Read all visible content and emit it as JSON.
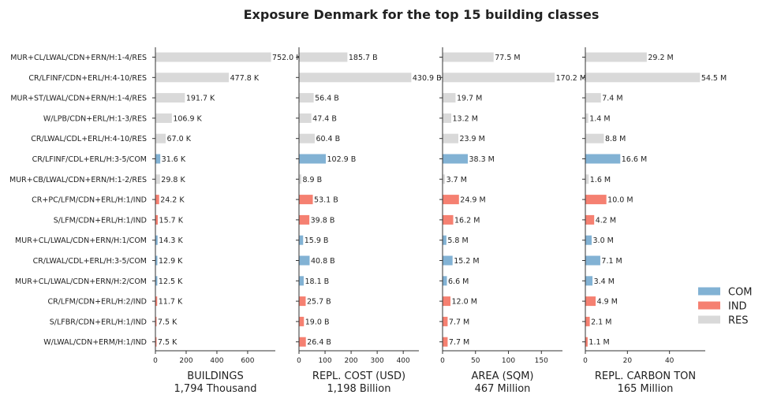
{
  "chart_data": {
    "type": "bar",
    "orientation": "horizontal",
    "title": "Exposure Denmark for the top 15 building classes",
    "categories": [
      "MUR+CL/LWAL/CDN+ERN/H:1-4/RES",
      "CR/LFINF/CDN+ERL/H:4-10/RES",
      "MUR+ST/LWAL/CDN+ERN/H:1-4/RES",
      "W/LPB/CDN+ERL/H:1-3/RES",
      "CR/LWAL/CDL+ERL/H:4-10/RES",
      "CR/LFINF/CDL+ERL/H:3-5/COM",
      "MUR+CB/LWAL/CDN+ERN/H:1-2/RES",
      "CR+PC/LFM/CDN+ERL/H:1/IND",
      "S/LFM/CDN+ERL/H:1/IND",
      "MUR+CL/LWAL/CDN+ERN/H:1/COM",
      "CR/LWAL/CDL+ERL/H:3-5/COM",
      "MUR+CL/LWAL/CDN+ERN/H:2/COM",
      "CR/LFM/CDN+ERL/H:2/IND",
      "S/LFBR/CDN+ERL/H:1/IND",
      "W/LWAL/CDN+ERM/H:1/IND"
    ],
    "occupancy": [
      "RES",
      "RES",
      "RES",
      "RES",
      "RES",
      "COM",
      "RES",
      "IND",
      "IND",
      "COM",
      "COM",
      "COM",
      "IND",
      "IND",
      "IND"
    ],
    "colors": {
      "COM": "#82b2d4",
      "IND": "#f58071",
      "RES": "#d9d9d9"
    },
    "legend": {
      "placement": "lower-right",
      "entries": [
        {
          "key": "COM",
          "label": "COM"
        },
        {
          "key": "IND",
          "label": "IND"
        },
        {
          "key": "RES",
          "label": "RES"
        }
      ]
    },
    "panels": [
      {
        "xlabel": "BUILDINGS",
        "total": "1,794 Thousand",
        "xlim": [
          0,
          780
        ],
        "xticks": [
          0,
          200,
          400,
          600
        ],
        "values": [
          752.0,
          477.8,
          191.7,
          106.9,
          67.0,
          31.6,
          29.8,
          24.2,
          15.7,
          14.3,
          12.9,
          12.5,
          11.7,
          7.5,
          7.5
        ],
        "labels": [
          "752.0 K",
          "477.8 K",
          "191.7 K",
          "106.9 K",
          "67.0 K",
          "31.6 K",
          "29.8 K",
          "24.2 K",
          "15.7 K",
          "14.3 K",
          "12.9 K",
          "12.5 K",
          "11.7 K",
          "7.5 K",
          "7.5 K"
        ]
      },
      {
        "xlabel": "REPL. COST (USD)",
        "total": "1,198 Billion",
        "xlim": [
          0,
          460
        ],
        "xticks": [
          0,
          100,
          200,
          300,
          400
        ],
        "values": [
          185.7,
          430.9,
          56.4,
          47.4,
          60.4,
          102.9,
          8.9,
          53.1,
          39.8,
          15.9,
          40.8,
          18.1,
          25.7,
          19.0,
          26.4
        ],
        "labels": [
          "185.7 B",
          "430.9 B",
          "56.4 B",
          "47.4 B",
          "60.4 B",
          "102.9 B",
          "8.9 B",
          "53.1 B",
          "39.8 B",
          "15.9 B",
          "40.8 B",
          "18.1 B",
          "25.7 B",
          "19.0 B",
          "26.4 B"
        ]
      },
      {
        "xlabel": "AREA (SQM)",
        "total": "467 Million",
        "xlim": [
          0,
          182
        ],
        "xticks": [
          0,
          50,
          100,
          150
        ],
        "values": [
          77.5,
          170.2,
          19.7,
          13.2,
          23.9,
          38.3,
          3.7,
          24.9,
          16.2,
          5.8,
          15.2,
          6.6,
          12.0,
          7.7,
          7.7
        ],
        "labels": [
          "77.5 M",
          "170.2 M",
          "19.7 M",
          "13.2 M",
          "23.9 M",
          "38.3 M",
          "3.7 M",
          "24.9 M",
          "16.2 M",
          "5.8 M",
          "15.2 M",
          "6.6 M",
          "12.0 M",
          "7.7 M",
          "7.7 M"
        ]
      },
      {
        "xlabel": "REPL. CARBON TON",
        "total": "165 Million",
        "xlim": [
          0,
          57
        ],
        "xticks": [
          0,
          20,
          40
        ],
        "values": [
          29.2,
          54.5,
          7.4,
          1.4,
          8.8,
          16.6,
          1.6,
          10.0,
          4.2,
          3.0,
          7.1,
          3.4,
          4.9,
          2.1,
          1.1
        ],
        "labels": [
          "29.2 M",
          "54.5 M",
          "7.4 M",
          "1.4 M",
          "8.8 M",
          "16.6 M",
          "1.6 M",
          "10.0 M",
          "4.2 M",
          "3.0 M",
          "7.1 M",
          "3.4 M",
          "4.9 M",
          "2.1 M",
          "1.1 M"
        ]
      }
    ]
  }
}
